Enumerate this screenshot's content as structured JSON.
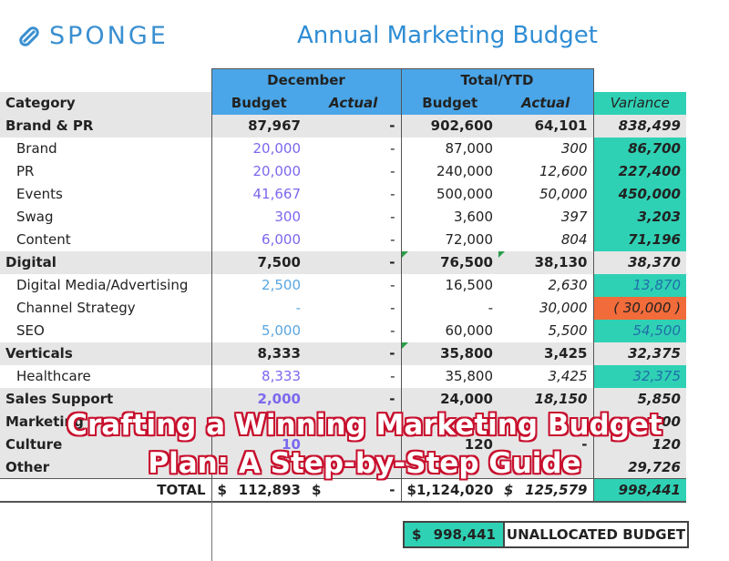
{
  "header": {
    "logo_text": "SPONGE",
    "title": "Annual Marketing Budget"
  },
  "columns": {
    "group1": "December",
    "group2": "Total/YTD",
    "category": "Category",
    "budget": "Budget",
    "actual": "Actual",
    "budget2": "Budget",
    "actual2": "Actual",
    "variance": "Variance"
  },
  "rows": [
    {
      "category": "Brand & PR",
      "dec_budget": "87,967",
      "dec_actual": "-",
      "tot_budget": "902,600",
      "tot_actual": "64,101",
      "variance": "838,499"
    },
    {
      "category": "Brand",
      "dec_budget": "20,000",
      "dec_actual": "-",
      "tot_budget": "87,000",
      "tot_actual": "300",
      "variance": "86,700"
    },
    {
      "category": "PR",
      "dec_budget": "20,000",
      "dec_actual": "-",
      "tot_budget": "240,000",
      "tot_actual": "12,600",
      "variance": "227,400"
    },
    {
      "category": "Events",
      "dec_budget": "41,667",
      "dec_actual": "-",
      "tot_budget": "500,000",
      "tot_actual": "50,000",
      "variance": "450,000"
    },
    {
      "category": "Swag",
      "dec_budget": "300",
      "dec_actual": "-",
      "tot_budget": "3,600",
      "tot_actual": "397",
      "variance": "3,203"
    },
    {
      "category": "Content",
      "dec_budget": "6,000",
      "dec_actual": "-",
      "tot_budget": "72,000",
      "tot_actual": "804",
      "variance": "71,196"
    },
    {
      "category": "Digital",
      "dec_budget": "7,500",
      "dec_actual": "-",
      "tot_budget": "76,500",
      "tot_actual": "38,130",
      "variance": "38,370"
    },
    {
      "category": "Digital Media/Advertising",
      "dec_budget": "2,500",
      "dec_actual": "-",
      "tot_budget": "16,500",
      "tot_actual": "2,630",
      "variance": "13,870"
    },
    {
      "category": "Channel Strategy",
      "dec_budget": "-",
      "dec_actual": "-",
      "tot_budget": "-",
      "tot_actual": "30,000",
      "variance": "( 30,000 )"
    },
    {
      "category": "SEO",
      "dec_budget": "5,000",
      "dec_actual": "-",
      "tot_budget": "60,000",
      "tot_actual": "5,500",
      "variance": "54,500"
    },
    {
      "category": "Verticals",
      "dec_budget": "8,333",
      "dec_actual": "-",
      "tot_budget": "35,800",
      "tot_actual": "3,425",
      "variance": "32,375"
    },
    {
      "category": "Healthcare",
      "dec_budget": "8,333",
      "dec_actual": "-",
      "tot_budget": "35,800",
      "tot_actual": "3,425",
      "variance": "32,375"
    },
    {
      "category": "Sales Support",
      "dec_budget": "2,000",
      "dec_actual": "-",
      "tot_budget": "24,000",
      "tot_actual": "18,150",
      "variance": "5,850"
    },
    {
      "category": "Marketing",
      "dec_budget": "",
      "dec_actual": "",
      "tot_budget": "",
      "tot_actual": "",
      "variance": "500"
    },
    {
      "category": "Culture",
      "dec_budget": "10",
      "dec_actual": "",
      "tot_budget": "120",
      "tot_actual": "-",
      "variance": "120"
    },
    {
      "category": "Other",
      "dec_budget": "",
      "dec_actual": "",
      "tot_budget": "",
      "tot_actual": "",
      "variance": "29,726"
    }
  ],
  "total": {
    "label": "TOTAL",
    "currency": "$",
    "dec_budget": "112,893",
    "dec_actual": "-",
    "tot_budget": "1,124,020",
    "tot_actual": "125,579",
    "variance": "998,441"
  },
  "unallocated": {
    "currency": "$",
    "amount": "998,441",
    "label": "UNALLOCATED BUDGET"
  },
  "overlay": {
    "line1": "Crafting a Winning Marketing Budget",
    "line2": "Plan: A Step-by-Step Guide"
  },
  "colors": {
    "accent_blue": "#4aa6e8",
    "variance_teal": "#2fd1b4",
    "negative_orange": "#f26b3a",
    "budget_purple": "#7b68ee",
    "overlay_red": "#c8102e"
  }
}
